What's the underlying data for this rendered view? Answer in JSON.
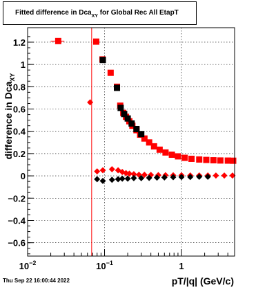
{
  "title": {
    "prefix": "Fitted difference in Dca",
    "subscript": "XY",
    "suffix": " for Global Rec All EtapT"
  },
  "timestamp": "Thu Sep 22 16:00:44 2022",
  "colors": {
    "red": "#ff0000",
    "black": "#000000"
  },
  "chart_data": {
    "type": "scatter",
    "xlabel": "pT/|q| (GeV/c)",
    "ylabel_main": "difference in Dca",
    "ylabel_sub": "XY",
    "xscale": "log",
    "xlim": [
      0.01,
      4.9
    ],
    "ylim": [
      -0.72,
      1.33
    ],
    "grid": true,
    "x_ticks": [
      {
        "value": 0.01,
        "label": "10",
        "exp": "−2"
      },
      {
        "value": 0.1,
        "label": "10",
        "exp": "−1"
      },
      {
        "value": 1,
        "label": "1",
        "exp": ""
      }
    ],
    "y_ticks": [
      -0.6,
      -0.4,
      -0.2,
      0,
      0.2,
      0.4,
      0.6,
      0.8,
      1,
      1.2
    ],
    "y_tick_labels": [
      "−0.6",
      "−0.4",
      "−0.2",
      "0",
      "0.2",
      "0.4",
      "0.6",
      "0.8",
      "1",
      "1.2"
    ],
    "vertical_line": {
      "x": 0.068,
      "color": "#ff0000"
    },
    "series": [
      {
        "marker": "square",
        "color": "#ff0000",
        "points": [
          [
            0.025,
            1.21
          ],
          [
            0.078,
            1.205
          ],
          [
            0.094,
            1.045
          ],
          [
            0.12,
            0.925
          ],
          [
            0.145,
            0.8
          ],
          [
            0.16,
            0.63
          ],
          [
            0.175,
            0.565
          ],
          [
            0.19,
            0.53
          ],
          [
            0.21,
            0.49
          ],
          [
            0.23,
            0.45
          ],
          [
            0.26,
            0.41
          ],
          [
            0.29,
            0.37
          ],
          [
            0.33,
            0.335
          ],
          [
            0.38,
            0.3
          ],
          [
            0.44,
            0.265
          ],
          [
            0.52,
            0.235
          ],
          [
            0.62,
            0.21
          ],
          [
            0.75,
            0.19
          ],
          [
            0.9,
            0.175
          ],
          [
            1.1,
            0.162
          ],
          [
            1.35,
            0.153
          ],
          [
            1.7,
            0.147
          ],
          [
            2.1,
            0.143
          ],
          [
            2.6,
            0.14
          ],
          [
            3.2,
            0.138
          ],
          [
            4.0,
            0.137
          ],
          [
            4.7,
            0.136
          ]
        ],
        "xerr_first": [
          0.02,
          0.03
        ]
      },
      {
        "marker": "square",
        "color": "#000000",
        "points": [
          [
            0.095,
            1.04
          ],
          [
            0.145,
            0.79
          ],
          [
            0.162,
            0.61
          ],
          [
            0.18,
            0.555
          ],
          [
            0.2,
            0.515
          ],
          [
            0.225,
            0.47
          ],
          [
            0.26,
            0.42
          ],
          [
            0.3,
            0.375
          ]
        ]
      },
      {
        "marker": "diamond",
        "color": "#ff0000",
        "points": [
          [
            0.065,
            0.66
          ],
          [
            0.08,
            0.04
          ],
          [
            0.095,
            0.05
          ],
          [
            0.125,
            0.06
          ],
          [
            0.15,
            0.05
          ],
          [
            0.17,
            0.035
          ],
          [
            0.19,
            0.025
          ],
          [
            0.21,
            0.02
          ],
          [
            0.24,
            0.015
          ],
          [
            0.28,
            0.01
          ],
          [
            0.33,
            0.01
          ],
          [
            0.4,
            0.008
          ],
          [
            0.5,
            0.007
          ],
          [
            0.62,
            0.006
          ],
          [
            0.78,
            0.005
          ],
          [
            1.0,
            0.005
          ],
          [
            1.3,
            0.004
          ],
          [
            1.7,
            0.004
          ],
          [
            2.2,
            0.004
          ],
          [
            2.8,
            0.003
          ],
          [
            3.6,
            0.003
          ],
          [
            4.6,
            0.003
          ]
        ]
      },
      {
        "marker": "diamond",
        "color": "#000000",
        "points": [
          [
            0.08,
            -0.03
          ],
          [
            0.095,
            -0.045
          ],
          [
            0.125,
            -0.035
          ],
          [
            0.15,
            -0.03
          ],
          [
            0.17,
            -0.025
          ],
          [
            0.2,
            -0.025
          ],
          [
            0.24,
            -0.02
          ],
          [
            0.3,
            -0.02
          ],
          [
            0.38,
            -0.018
          ],
          [
            0.48,
            -0.016
          ],
          [
            0.6,
            -0.014
          ],
          [
            0.78,
            -0.012
          ],
          [
            1.0,
            -0.01
          ],
          [
            1.3,
            -0.01
          ],
          [
            1.7,
            -0.008
          ],
          [
            2.2,
            -0.008
          ]
        ]
      }
    ]
  }
}
